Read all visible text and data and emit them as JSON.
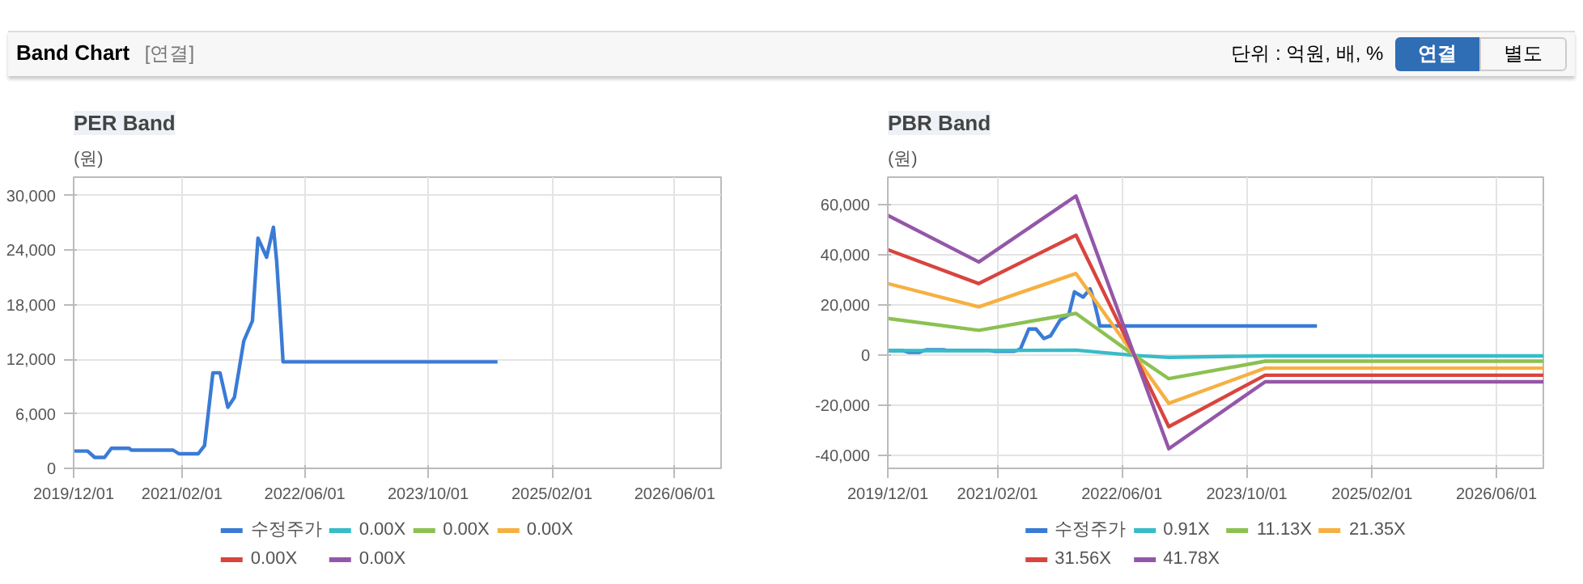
{
  "chart_data": [
    {
      "type": "line",
      "title": "PER Band",
      "ylabel": "(원)",
      "annotations": [
        "Band Chart",
        "[연결]",
        "단위 : 억원, 배, %",
        "연결",
        "별도"
      ],
      "xlim": [
        "2019-12-01",
        "2026-12-01"
      ],
      "xticks": [
        {
          "value": "2019-12-01",
          "label": "2019/12/01"
        },
        {
          "value": "2021-02-01",
          "label": "2021/02/01"
        },
        {
          "value": "2022-06-01",
          "label": "2022/06/01"
        },
        {
          "value": "2023-10-01",
          "label": "2023/10/01"
        },
        {
          "value": "2025-02-01",
          "label": "2025/02/01"
        },
        {
          "value": "2026-06-01",
          "label": "2026/06/01"
        }
      ],
      "ylim": [
        0,
        32000
      ],
      "yticks": [
        0,
        {
          "value": 6000,
          "label": "6,000"
        },
        {
          "value": 12000,
          "label": "12,000"
        },
        {
          "value": 18000,
          "label": "18,000"
        },
        {
          "value": 24000,
          "label": "24,000"
        },
        {
          "value": 30000,
          "label": "30,000"
        }
      ],
      "grid": true,
      "legend": "bottom",
      "series": [
        {
          "name": "수정주가",
          "color": "#3a7bd5",
          "x": [
            "2019-12-01",
            "2020-01-25",
            "2020-02-22",
            "2020-04-01",
            "2020-04-28",
            "2020-07-07",
            "2020-07-16",
            "2020-12-28",
            "2021-01-20",
            "2021-04-06",
            "2021-05-01",
            "2021-06-03",
            "2021-07-01",
            "2021-08-01",
            "2021-08-27",
            "2021-10-03",
            "2021-11-06",
            "2021-11-28",
            "2022-01-01",
            "2022-01-28",
            "2022-02-10",
            "2022-02-19",
            "2022-02-28",
            "2022-03-07",
            "2024-07-01"
          ],
          "values": [
            1900,
            1900,
            1200,
            1200,
            2200,
            2200,
            2000,
            2000,
            1600,
            1600,
            2500,
            10500,
            10500,
            6700,
            7800,
            14000,
            16200,
            25300,
            23200,
            26500,
            22700,
            18800,
            15000,
            11700,
            11700
          ]
        },
        {
          "name": "0.00X",
          "color": "#37bcc8"
        },
        {
          "name": "0.00X",
          "color": "#8cc152"
        },
        {
          "name": "0.00X",
          "color": "#f6b042"
        },
        {
          "name": "0.00X",
          "color": "#d9443f"
        },
        {
          "name": "0.00X",
          "color": "#9457a8"
        }
      ]
    },
    {
      "type": "line",
      "title": "PBR Band",
      "ylabel": "(원)",
      "xlim": [
        "2019-12-01",
        "2026-12-01"
      ],
      "xticks": [
        {
          "value": "2019-12-01",
          "label": "2019/12/01"
        },
        {
          "value": "2021-02-01",
          "label": "2021/02/01"
        },
        {
          "value": "2022-06-01",
          "label": "2022/06/01"
        },
        {
          "value": "2023-10-01",
          "label": "2023/10/01"
        },
        {
          "value": "2025-02-01",
          "label": "2025/02/01"
        },
        {
          "value": "2026-06-01",
          "label": "2026/06/01"
        }
      ],
      "ylim": [
        -45000,
        71000
      ],
      "yticks": [
        {
          "value": -40000,
          "label": "-40,000"
        },
        {
          "value": -20000,
          "label": "-20,000"
        },
        0,
        {
          "value": 20000,
          "label": "20,000"
        },
        {
          "value": 40000,
          "label": "40,000"
        },
        {
          "value": 60000,
          "label": "60,000"
        }
      ],
      "grid": true,
      "legend": "bottom",
      "x": [
        "2019-12-01",
        "2020-11-20",
        "2021-12-04",
        "2022-07-20",
        "2022-12-01",
        "2023-12-12",
        "2026-12-01"
      ],
      "series": [
        {
          "name": "수정주가",
          "color": "#3a7bd5",
          "x": [
            "2019-12-01",
            "2020-01-25",
            "2020-02-22",
            "2020-04-01",
            "2020-04-28",
            "2020-07-07",
            "2020-07-16",
            "2020-12-28",
            "2021-01-20",
            "2021-04-06",
            "2021-05-01",
            "2021-06-03",
            "2021-07-01",
            "2021-08-01",
            "2021-08-27",
            "2021-10-03",
            "2021-11-06",
            "2021-11-28",
            "2022-01-01",
            "2022-01-28",
            "2022-02-10",
            "2022-02-19",
            "2022-02-28",
            "2022-03-07",
            "2024-07-01"
          ],
          "values": [
            1900,
            1900,
            1200,
            1200,
            2200,
            2200,
            2000,
            2000,
            1600,
            1600,
            2500,
            10500,
            10500,
            6700,
            7800,
            14000,
            16200,
            25300,
            23200,
            26500,
            22700,
            18800,
            15000,
            11700,
            11700
          ]
        },
        {
          "name": "0.91X",
          "color": "#37bcc8",
          "values": [
            1900,
            1900,
            2100,
            0,
            -800,
            -200,
            -200
          ]
        },
        {
          "name": "11.13X",
          "color": "#8cc152",
          "values": [
            14700,
            10000,
            16700,
            0,
            -9300,
            -2300,
            -2300
          ]
        },
        {
          "name": "21.35X",
          "color": "#f6b042",
          "values": [
            28600,
            19300,
            32600,
            0,
            -19100,
            -5100,
            -5100
          ]
        },
        {
          "name": "31.56X",
          "color": "#d9443f",
          "values": [
            42100,
            28600,
            47900,
            0,
            -28400,
            -7900,
            -7900
          ]
        },
        {
          "name": "41.78X",
          "color": "#9457a8",
          "values": [
            55800,
            37200,
            63500,
            0,
            -37200,
            -10500,
            -10500
          ]
        }
      ]
    }
  ]
}
